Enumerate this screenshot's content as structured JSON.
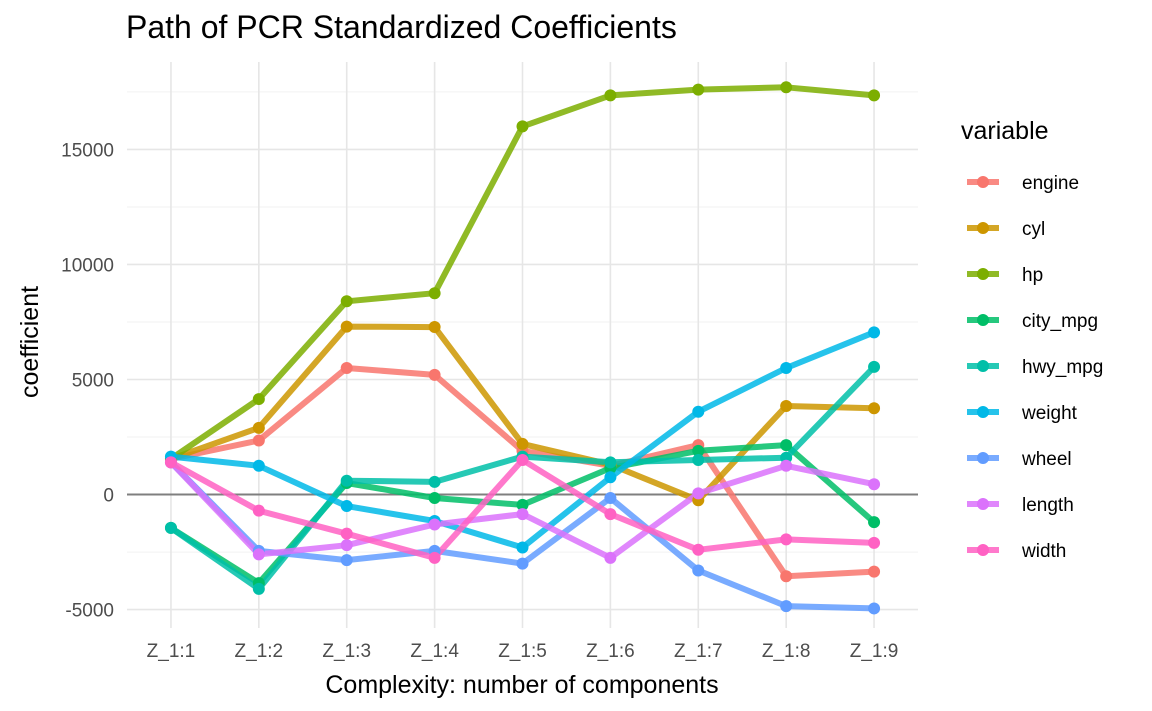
{
  "chart_data": {
    "type": "line",
    "title": "Path of PCR Standardized Coefficients",
    "xlabel": "Complexity: number of components",
    "ylabel": "coefficient",
    "categories": [
      "Z_1:1",
      "Z_1:2",
      "Z_1:3",
      "Z_1:4",
      "Z_1:5",
      "Z_1:6",
      "Z_1:7",
      "Z_1:8",
      "Z_1:9"
    ],
    "ylim": [
      -5800,
      18800
    ],
    "yticks": [
      -5000,
      0,
      5000,
      10000,
      15000
    ],
    "ytick_labels": [
      "-5000",
      "0",
      "5000",
      "10000",
      "15000"
    ],
    "reference_line": 0,
    "grid": true,
    "legend": {
      "title": "variable",
      "position": "right"
    },
    "series": [
      {
        "name": "engine",
        "color": "#F8766D",
        "values": [
          1550,
          2350,
          5500,
          5200,
          1900,
          1250,
          2150,
          -3550,
          -3350
        ]
      },
      {
        "name": "cyl",
        "color": "#CD9600",
        "values": [
          1550,
          2900,
          7300,
          7280,
          2200,
          1300,
          -250,
          3850,
          3750
        ]
      },
      {
        "name": "hp",
        "color": "#7CAE00",
        "values": [
          1550,
          4150,
          8400,
          8750,
          16000,
          17350,
          17600,
          17700,
          17350
        ]
      },
      {
        "name": "city_mpg",
        "color": "#00BE67",
        "values": [
          -1450,
          -3850,
          500,
          -150,
          -450,
          1150,
          1900,
          2150,
          -1200
        ]
      },
      {
        "name": "hwy_mpg",
        "color": "#00BFA8",
        "values": [
          -1450,
          -4100,
          600,
          550,
          1650,
          1400,
          1500,
          1600,
          5550
        ]
      },
      {
        "name": "weight",
        "color": "#00B8E7",
        "values": [
          1650,
          1250,
          -500,
          -1150,
          -2300,
          750,
          3600,
          5500,
          7050
        ]
      },
      {
        "name": "wheel",
        "color": "#619CFF",
        "values": [
          1400,
          -2450,
          -2850,
          -2450,
          -3000,
          -150,
          -3300,
          -4850,
          -4950
        ]
      },
      {
        "name": "length",
        "color": "#DB72FB",
        "values": [
          1400,
          -2600,
          -2200,
          -1300,
          -850,
          -2750,
          50,
          1250,
          450
        ]
      },
      {
        "name": "width",
        "color": "#FF61C3",
        "values": [
          1400,
          -700,
          -1700,
          -2750,
          1500,
          -850,
          -2400,
          -1950,
          -2100
        ]
      }
    ]
  }
}
